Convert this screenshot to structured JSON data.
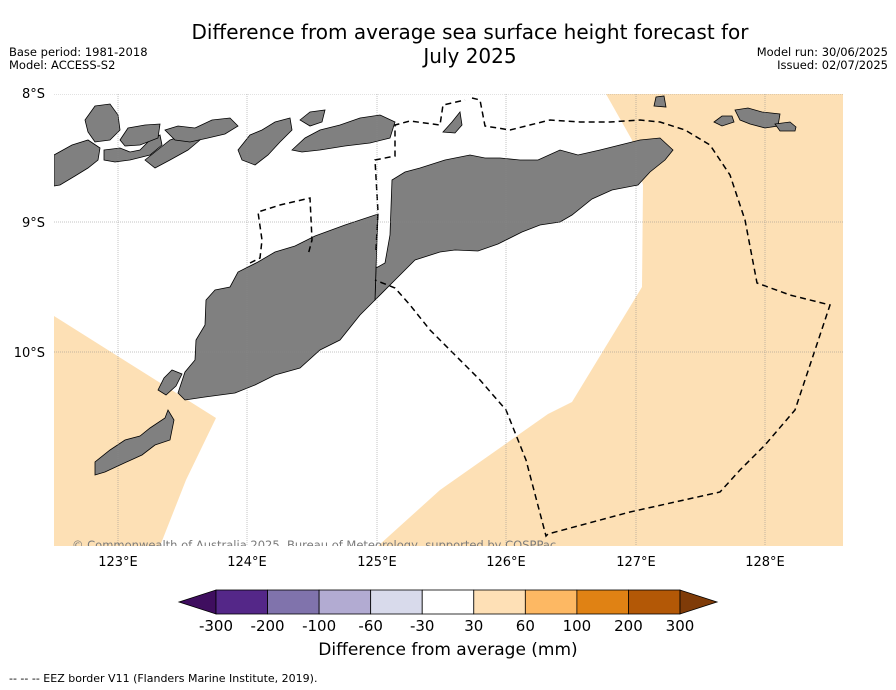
{
  "header": {
    "title_line1": "Difference from average sea surface height forecast for",
    "title_line2": "July 2025",
    "base_period": "Base period: 1981-2018",
    "model": "Model: ACCESS-S2",
    "model_run": "Model run: 30/06/2025",
    "issued": "Issued: 02/07/2025"
  },
  "map": {
    "lat_labels": [
      "8°S",
      "9°S",
      "10°S"
    ],
    "lon_labels": [
      "123°E",
      "124°E",
      "125°E",
      "126°E",
      "127°E",
      "128°E"
    ],
    "copyright": "© Commonwealth of Australia 2025, Bureau of Meteorology, supported by COSPPac",
    "colors": {
      "land": "#808080",
      "anomaly_30_60": "#fde0b5",
      "ocean_neutral": "#ffffff",
      "eez_line": "#000000"
    }
  },
  "colorbar": {
    "title": "Difference from average (mm)",
    "tick_labels": [
      "-300",
      "-200",
      "-100",
      "-60",
      "-30",
      "30",
      "60",
      "100",
      "200",
      "300"
    ],
    "colors": [
      "#3f0e5f",
      "#542788",
      "#8073ac",
      "#b2abd2",
      "#d8daeb",
      "#ffffff",
      "#fee0b6",
      "#fdb863",
      "#e08214",
      "#b35806",
      "#7f3b08"
    ]
  },
  "footer": {
    "legend_text": "--  --  -- EEZ border V11 (Flanders Marine Institute, 2019)."
  }
}
